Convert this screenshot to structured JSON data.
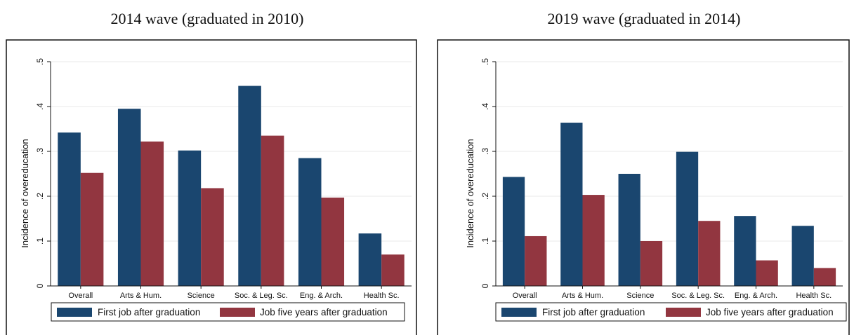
{
  "legend": {
    "first_label": "First job after graduation",
    "five_label": "Job five years after graduation"
  },
  "colors": {
    "first": "#1a466f",
    "five": "#923640",
    "grid": "#eaeaea"
  },
  "chart_data": [
    {
      "type": "bar",
      "title": "2014 wave (graduated in 2010)",
      "ylabel": "Incidence of overeducation",
      "xlabel": "",
      "categories": [
        "Overall",
        "Arts & Hum.",
        "Science",
        "Soc. & Leg. Sc.",
        "Eng. & Arch.",
        "Health Sc."
      ],
      "series": [
        {
          "name": "First job after graduation",
          "values": [
            0.342,
            0.395,
            0.302,
            0.446,
            0.285,
            0.117
          ]
        },
        {
          "name": "Job five years after graduation",
          "values": [
            0.252,
            0.322,
            0.218,
            0.335,
            0.197,
            0.07
          ]
        }
      ],
      "ylim": [
        0,
        0.5
      ],
      "yticks": [
        0,
        0.1,
        0.2,
        0.3,
        0.4,
        0.5
      ],
      "yticklabels": [
        "0",
        ".1",
        ".2",
        ".3",
        ".4",
        ".5"
      ],
      "grid": true,
      "legend_position": "bottom"
    },
    {
      "type": "bar",
      "title": "2019 wave (graduated in 2014)",
      "ylabel": "Incidence of overeducation",
      "xlabel": "",
      "categories": [
        "Overall",
        "Arts & Hum.",
        "Science",
        "Soc. & Leg. Sc.",
        "Eng. & Arch.",
        "Health Sc."
      ],
      "series": [
        {
          "name": "First job after graduation",
          "values": [
            0.243,
            0.364,
            0.25,
            0.299,
            0.156,
            0.134
          ]
        },
        {
          "name": "Job five years after graduation",
          "values": [
            0.111,
            0.203,
            0.1,
            0.145,
            0.057,
            0.04
          ]
        }
      ],
      "ylim": [
        0,
        0.5
      ],
      "yticks": [
        0,
        0.1,
        0.2,
        0.3,
        0.4,
        0.5
      ],
      "yticklabels": [
        "0",
        ".1",
        ".2",
        ".3",
        ".4",
        ".5"
      ],
      "grid": true,
      "legend_position": "bottom"
    }
  ]
}
